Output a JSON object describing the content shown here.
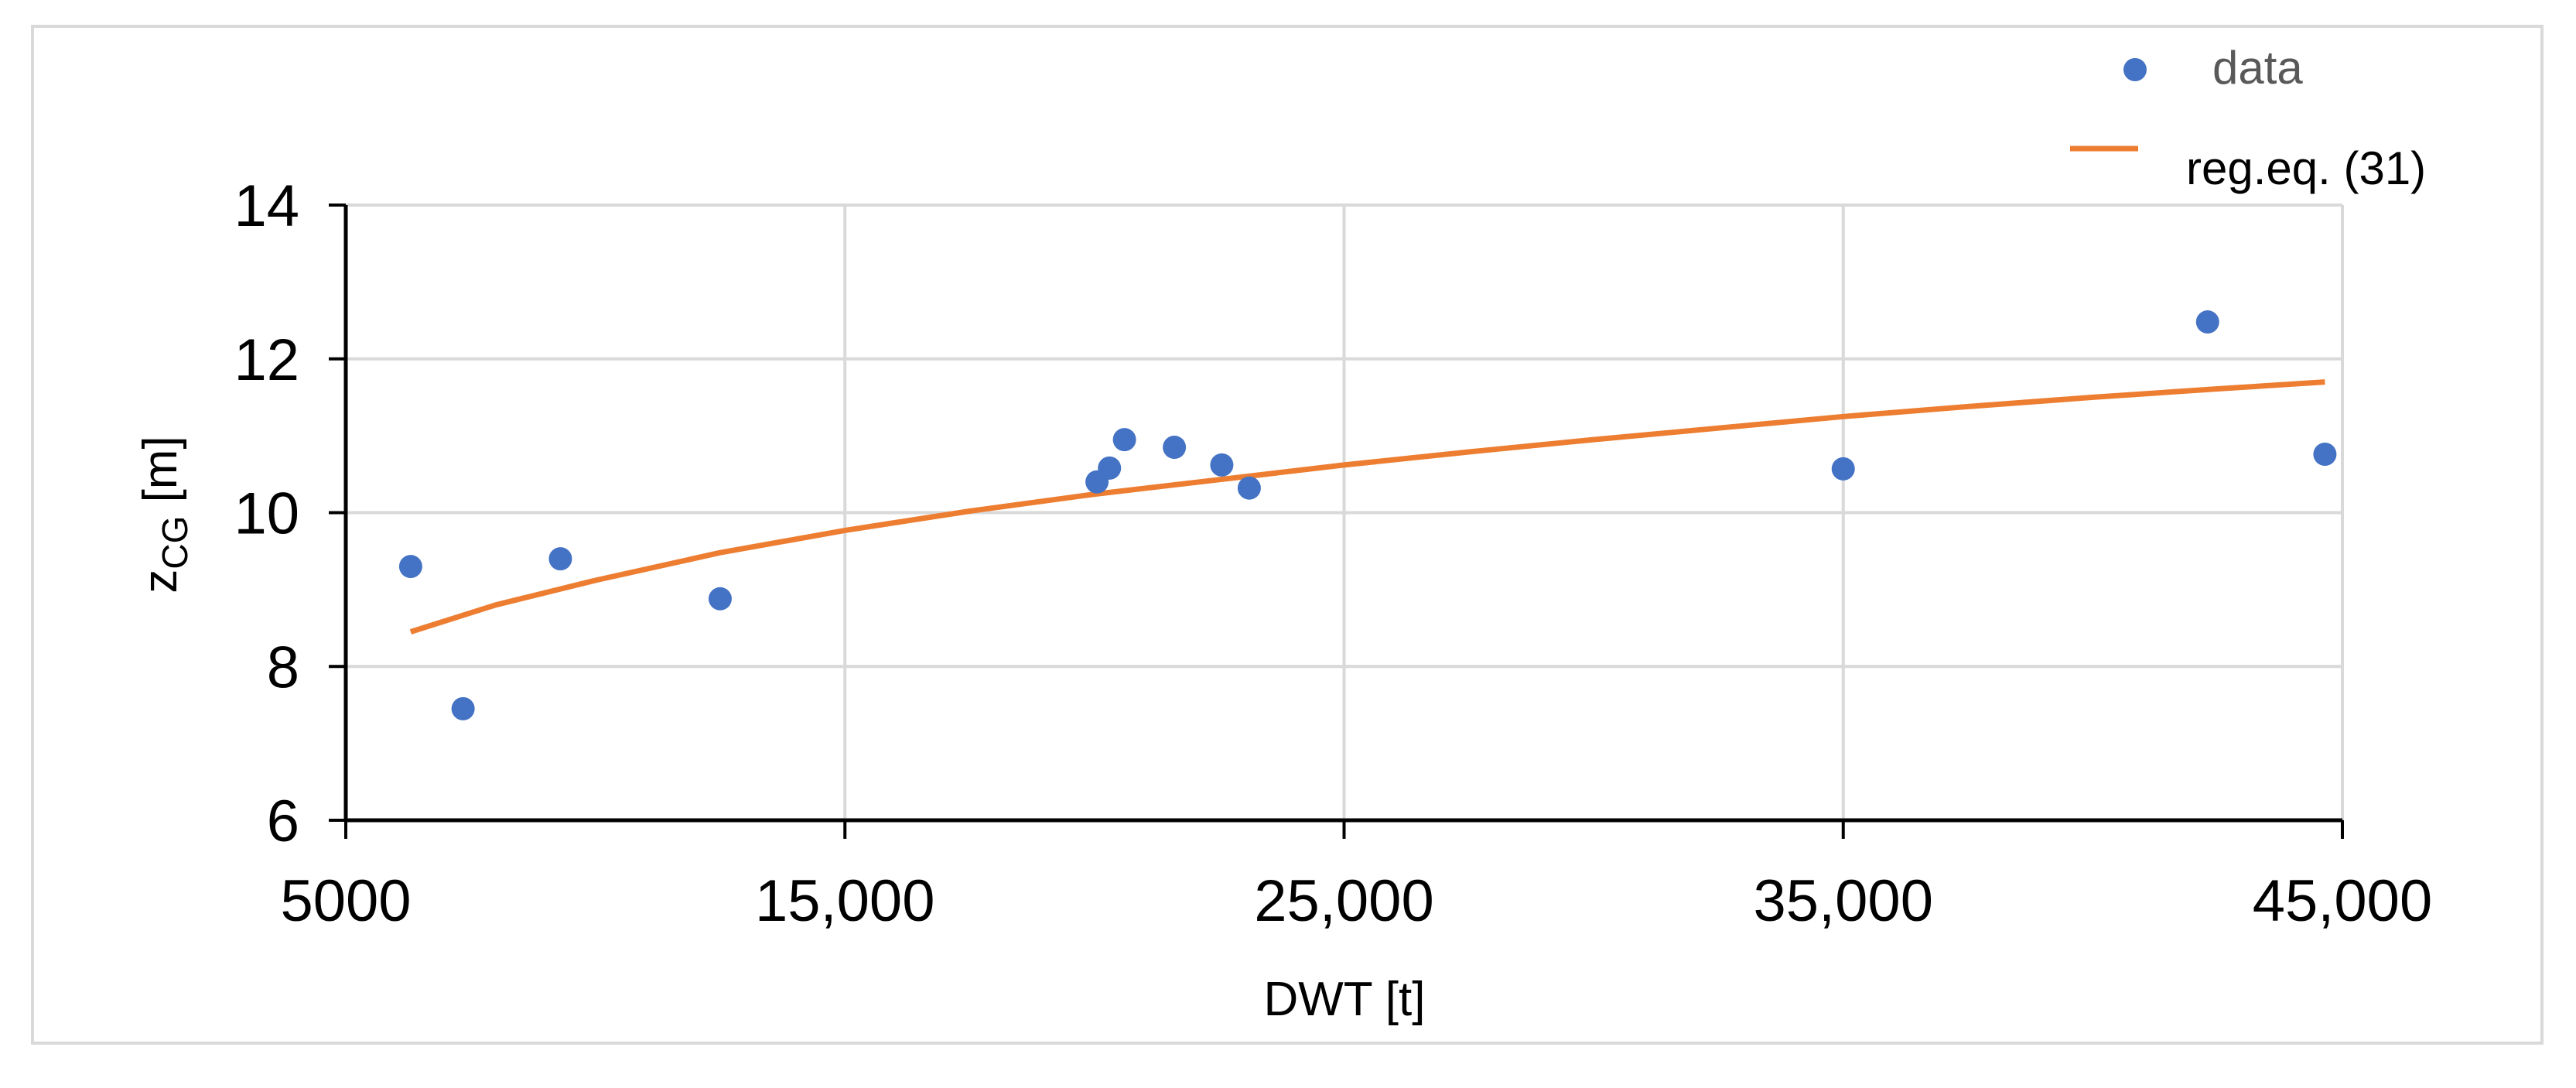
{
  "chart_data": {
    "type": "scatter",
    "xlabel": "DWT [t]",
    "ylabel_main": "z",
    "ylabel_sub": "CG",
    "ylabel_unit": " [m]",
    "xlim": [
      5000,
      45000
    ],
    "ylim": [
      6,
      14
    ],
    "x_ticks": [
      5000,
      15000,
      25000,
      35000,
      45000
    ],
    "x_tick_labels": [
      "5000",
      "15,000",
      "25,000",
      "35,000",
      "45,000"
    ],
    "y_ticks": [
      6,
      8,
      10,
      12,
      14
    ],
    "y_tick_labels": [
      "6",
      "8",
      "10",
      "12",
      "14"
    ],
    "grid": true,
    "legend_position": "top-right",
    "colors": {
      "data": "#4472c4",
      "regression": "#ed7d31",
      "grid": "#d9d9d9",
      "axis": "#000000"
    },
    "series": [
      {
        "name": "data",
        "kind": "points",
        "x": [
          6300,
          7350,
          9300,
          12500,
          20050,
          20300,
          20600,
          21600,
          22550,
          23100,
          35000,
          42300,
          44650
        ],
        "y": [
          9.3,
          7.45,
          9.4,
          8.88,
          10.4,
          10.58,
          10.95,
          10.85,
          10.62,
          10.32,
          10.57,
          12.48,
          10.76
        ]
      },
      {
        "name": "reg.eq. (31)",
        "kind": "line",
        "x": [
          6300,
          8000,
          10000,
          12500,
          15000,
          17500,
          20000,
          22500,
          25000,
          27500,
          30000,
          32500,
          35000,
          37500,
          40000,
          42500,
          44650
        ],
        "y": [
          8.45,
          8.8,
          9.12,
          9.48,
          9.77,
          10.02,
          10.24,
          10.43,
          10.62,
          10.79,
          10.95,
          11.1,
          11.25,
          11.38,
          11.5,
          11.61,
          11.7
        ]
      }
    ]
  }
}
